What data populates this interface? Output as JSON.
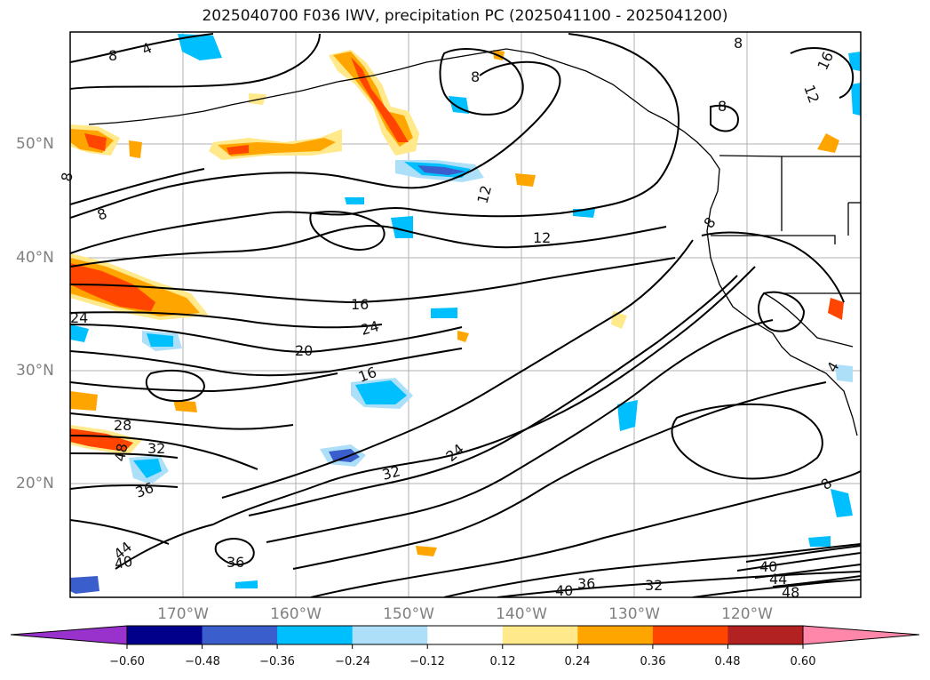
{
  "title": "2025040700 F036 IWV, precipitation PC (2025041100 - 2025041200)",
  "map": {
    "lat_labels": [
      "50°N",
      "40°N",
      "30°N",
      "20°N"
    ],
    "lon_labels": [
      "170°W",
      "160°W",
      "150°W",
      "140°W",
      "130°W",
      "120°W"
    ],
    "contour_labels": [
      "4",
      "8",
      "8",
      "8",
      "8",
      "8",
      "8",
      "8",
      "12",
      "12",
      "12",
      "16",
      "16",
      "16",
      "20",
      "24",
      "24",
      "24",
      "28",
      "32",
      "32",
      "32",
      "36",
      "36",
      "36",
      "40",
      "40",
      "40",
      "44",
      "44",
      "48",
      "48",
      "4",
      "8"
    ]
  },
  "colorbar": {
    "ticks": [
      "−0.60",
      "−0.48",
      "−0.36",
      "−0.24",
      "−0.12",
      "0.12",
      "0.24",
      "0.36",
      "0.48",
      "0.60"
    ],
    "colors": [
      "#9932CC",
      "#00008B",
      "#3A5FCD",
      "#00BFFF",
      "#ADE0F8",
      "#ffffff",
      "#FFE98A",
      "#FFA500",
      "#FF4500",
      "#B22222",
      "#FF88AA"
    ]
  },
  "colors": {
    "contour": "#000000",
    "grid": "#b0b0b0",
    "coast": "#000000",
    "pos_fill_light": "#FFE98A",
    "pos_fill_mid": "#FFA500",
    "pos_fill_strong": "#FF4500",
    "neg_fill_light": "#ADE0F8",
    "neg_fill_mid": "#00BFFF",
    "neg_fill_strong": "#3A5FCD"
  }
}
